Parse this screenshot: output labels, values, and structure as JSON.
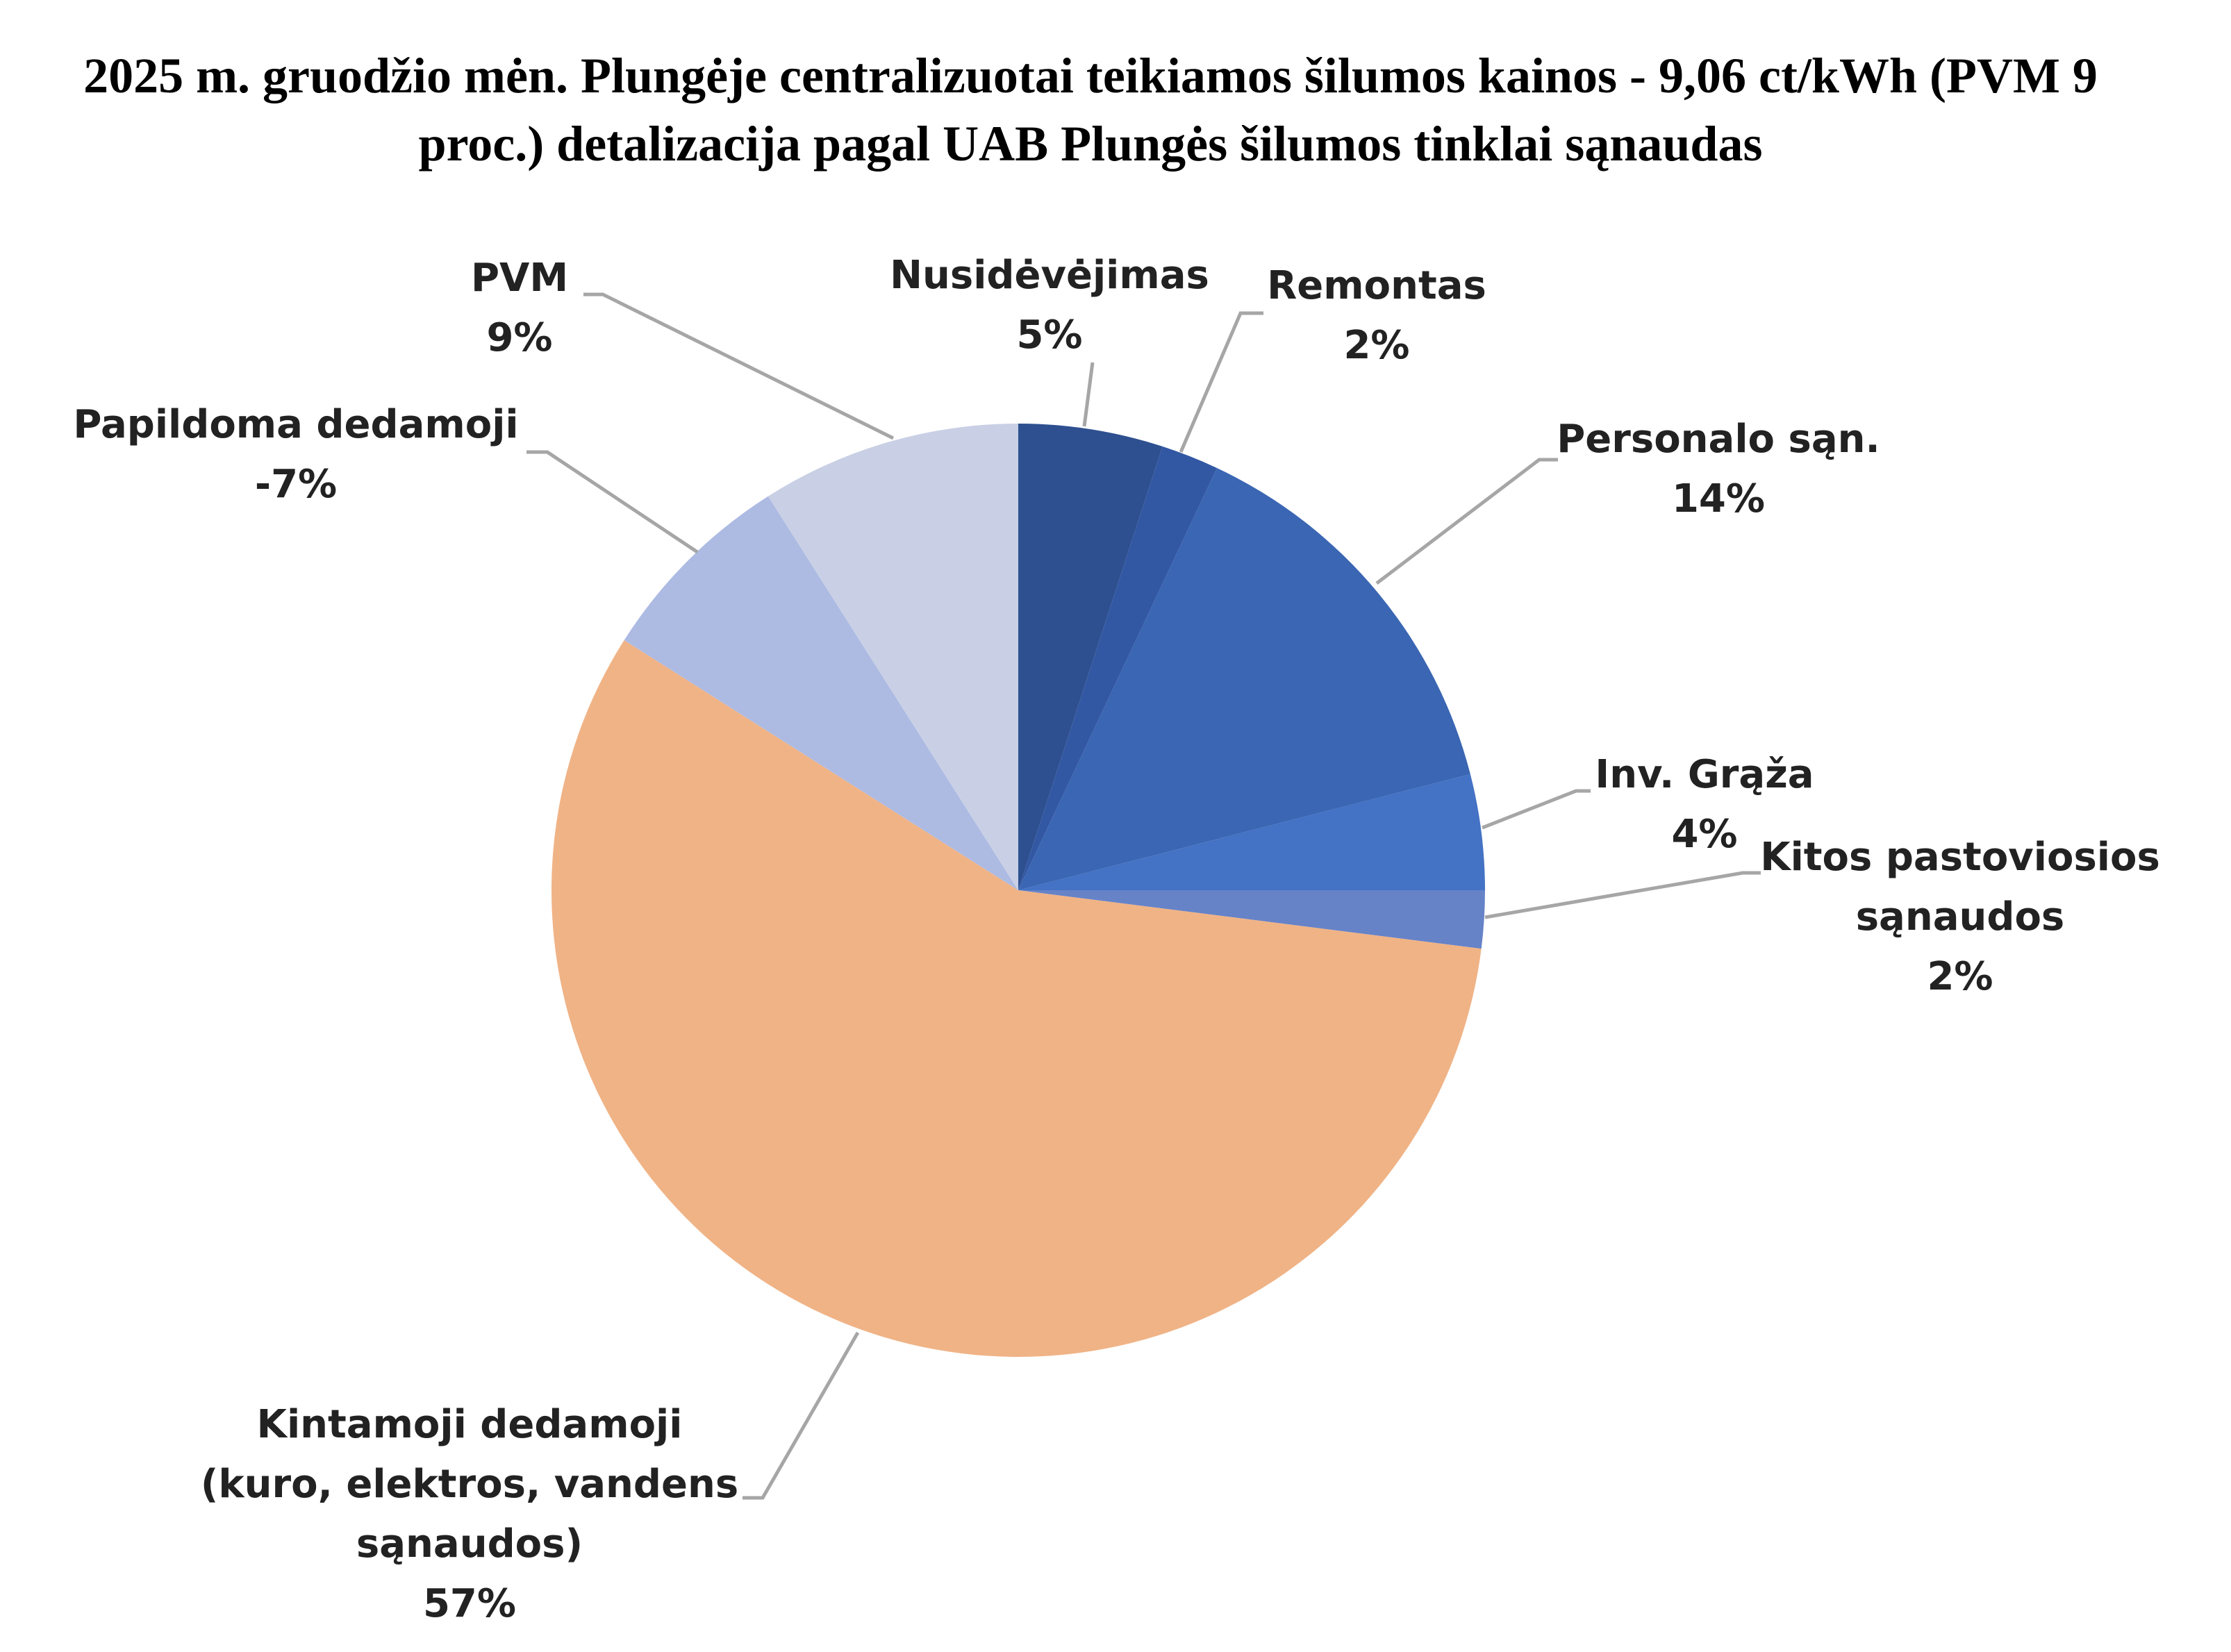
{
  "chart_data": {
    "type": "pie",
    "title": "2025 m. gruodžio mėn. Plungėje centralizuotai teikiamos šilumos kainos - 9,06 ct/kWh (PVM 9 proc.) detalizacija pagal UAB Plungės šilumos tinklai sąnaudas",
    "categories": [
      "Nusidėvėjimas",
      "Remontas",
      "Personalo sąn.",
      "Inv. Grąža",
      "Kitos pastoviosios sąnaudos",
      "Kintamoji dedamoji (kuro, elektros, vandens sąnaudos)",
      "Papildoma dedamoji",
      "PVM"
    ],
    "values": [
      5,
      2,
      14,
      4,
      2,
      57,
      -7,
      9
    ],
    "value_labels": [
      "5%",
      "2%",
      "14%",
      "4%",
      "2%",
      "57%",
      "-7%",
      "9%"
    ],
    "colors": [
      "#2e5090",
      "#3358a3",
      "#3a66b3",
      "#4472c4",
      "#6683c8",
      "#f0b386",
      "#adbbe3",
      "#c9d0e5"
    ]
  }
}
